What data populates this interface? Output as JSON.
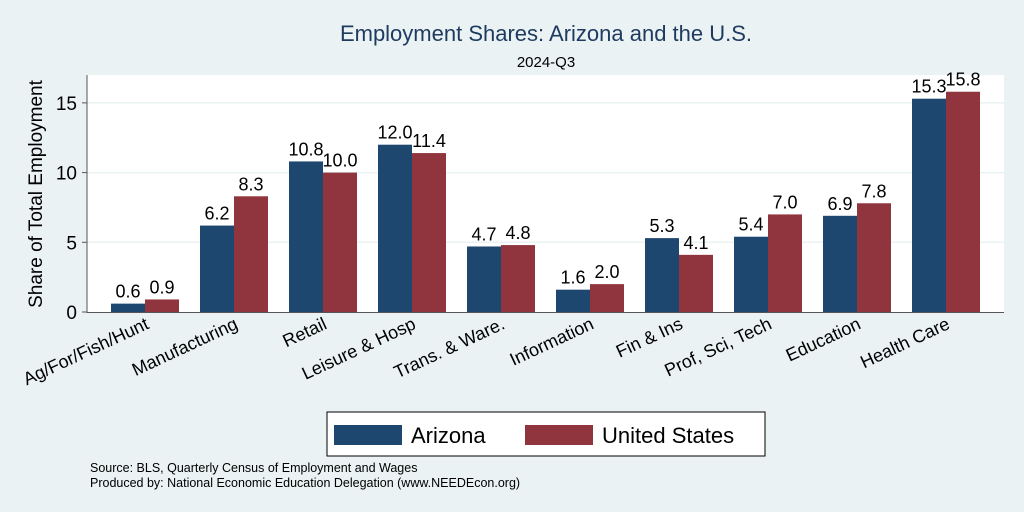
{
  "chart_data": {
    "type": "bar",
    "title": "Employment Shares: Arizona and the U.S.",
    "subtitle": "2024-Q3",
    "xlabel": "",
    "ylabel": "Share of Total Employment",
    "ylim": [
      0,
      17
    ],
    "yticks": [
      0,
      5,
      10,
      15
    ],
    "grid": true,
    "categories": [
      "Ag/For/Fish/Hunt",
      "Manufacturing",
      "Retail",
      "Leisure & Hosp",
      "Trans. & Ware.",
      "Information",
      "Fin & Ins",
      "Prof, Sci, Tech",
      "Education",
      "Health Care"
    ],
    "series": [
      {
        "name": "Arizona",
        "color": "#1d476e",
        "values": [
          0.6,
          6.2,
          10.8,
          12.0,
          4.7,
          1.6,
          5.3,
          5.4,
          6.9,
          15.3
        ]
      },
      {
        "name": "United States",
        "color": "#90353d",
        "values": [
          0.9,
          8.3,
          10.0,
          11.4,
          4.8,
          2.0,
          4.1,
          7.0,
          7.8,
          15.8
        ]
      }
    ],
    "legend_position": "bottom",
    "notes": [
      "Source: BLS, Quarterly Census of Employment and Wages",
      "Produced by: National Economic Education Delegation (www.NEEDEcon.org)"
    ]
  }
}
